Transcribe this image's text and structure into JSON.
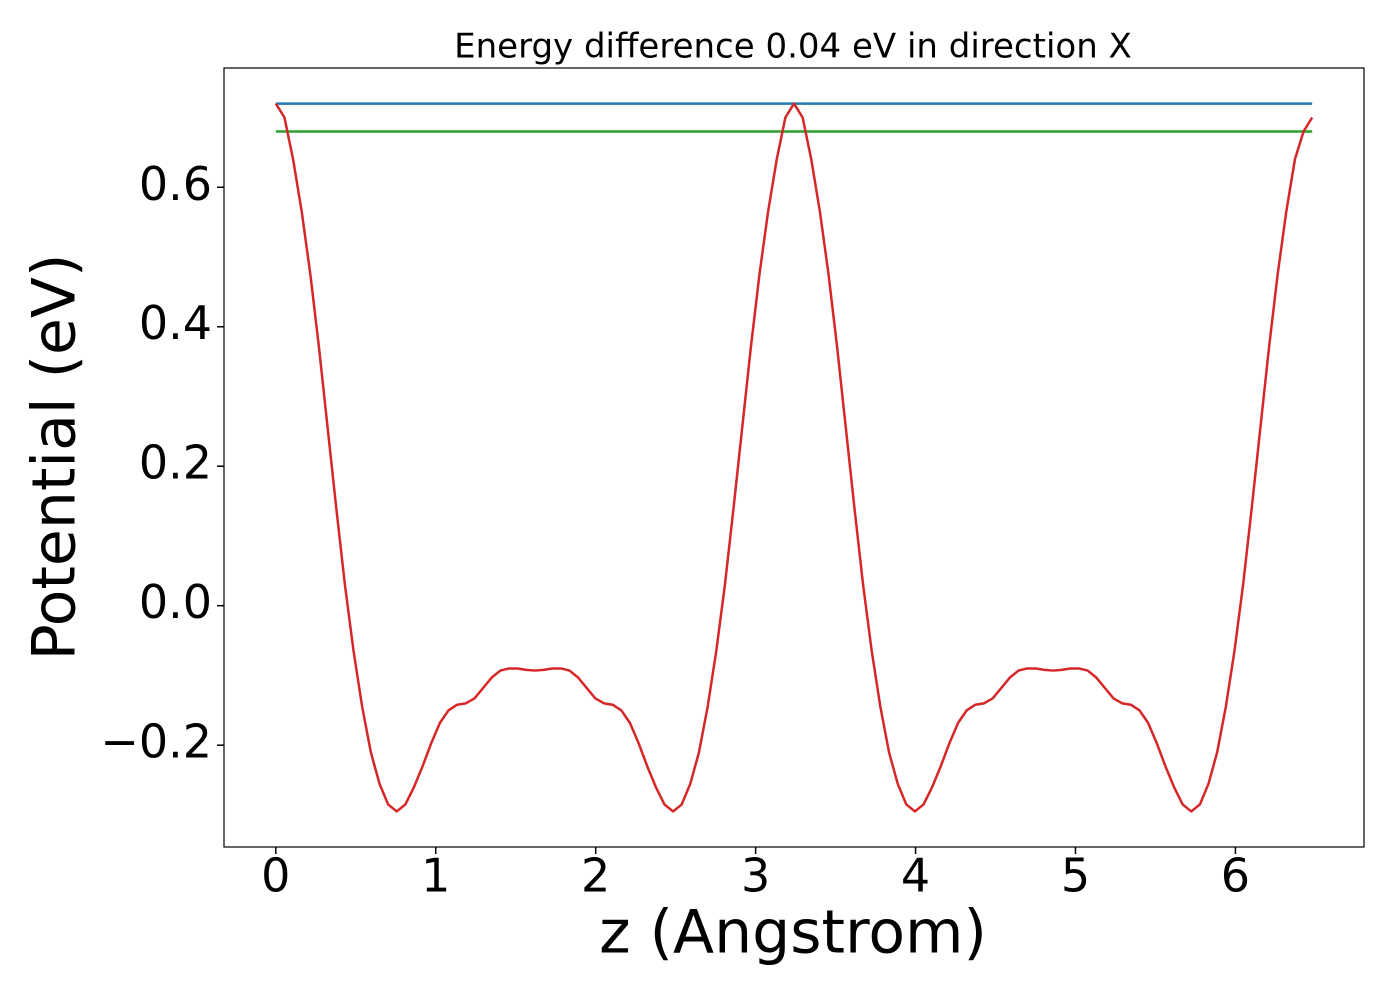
{
  "chart_data": {
    "type": "line",
    "title": "Energy difference 0.04 eV in direction X",
    "xlabel": "z (Angstrom)",
    "ylabel": "Potential (eV)",
    "xlim": [
      -0.324,
      6.804
    ],
    "ylim": [
      -0.346,
      0.771
    ],
    "xticks": [
      0,
      1,
      2,
      3,
      4,
      5,
      6
    ],
    "yticks": [
      {
        "value": -0.2,
        "label": "−0.2"
      },
      {
        "value": 0,
        "label": "0.0"
      },
      0.2,
      0.4,
      0.6
    ],
    "grid": false,
    "series": [
      {
        "color": "#1f77b4",
        "x": [
          0,
          6.48
        ],
        "values": [
          0.72,
          0.72
        ]
      },
      {
        "color": "#2ca02c",
        "x": [
          0,
          6.48
        ],
        "values": [
          0.68,
          0.68
        ]
      },
      {
        "color": "#d62728",
        "x": [
          0,
          0.054,
          0.108,
          0.162,
          0.216,
          0.27,
          0.324,
          0.378,
          0.432,
          0.486,
          0.54,
          0.594,
          0.648,
          0.702,
          0.756,
          0.81,
          0.864,
          0.918,
          0.972,
          1.026,
          1.08,
          1.134,
          1.188,
          1.242,
          1.296,
          1.35,
          1.404,
          1.458,
          1.512,
          1.566,
          1.62,
          1.674,
          1.728,
          1.782,
          1.836,
          1.89,
          1.944,
          1.998,
          2.052,
          2.106,
          2.16,
          2.214,
          2.268,
          2.322,
          2.376,
          2.43,
          2.484,
          2.538,
          2.592,
          2.646,
          2.7,
          2.754,
          2.808,
          2.862,
          2.916,
          2.97,
          3.024,
          3.078,
          3.132,
          3.186,
          3.24,
          3.294,
          3.348,
          3.402,
          3.456,
          3.51,
          3.564,
          3.618,
          3.672,
          3.726,
          3.78,
          3.834,
          3.888,
          3.942,
          3.996,
          4.05,
          4.104,
          4.158,
          4.212,
          4.266,
          4.32,
          4.374,
          4.428,
          4.482,
          4.536,
          4.59,
          4.644,
          4.698,
          4.752,
          4.806,
          4.86,
          4.914,
          4.968,
          5.022,
          5.076,
          5.13,
          5.184,
          5.238,
          5.292,
          5.346,
          5.4,
          5.454,
          5.508,
          5.562,
          5.616,
          5.67,
          5.724,
          5.778,
          5.832,
          5.886,
          5.94,
          5.994,
          6.048,
          6.102,
          6.156,
          6.21,
          6.264,
          6.318,
          6.372,
          6.426,
          6.48
        ],
        "values": [
          0.72,
          0.7,
          0.64,
          0.565,
          0.475,
          0.37,
          0.255,
          0.14,
          0.03,
          -0.065,
          -0.145,
          -0.21,
          -0.255,
          -0.285,
          -0.295,
          -0.285,
          -0.26,
          -0.23,
          -0.197,
          -0.168,
          -0.15,
          -0.142,
          -0.14,
          -0.133,
          -0.118,
          -0.103,
          -0.093,
          -0.09,
          -0.09,
          -0.092,
          -0.093,
          -0.092,
          -0.09,
          -0.09,
          -0.093,
          -0.103,
          -0.118,
          -0.133,
          -0.14,
          -0.142,
          -0.15,
          -0.168,
          -0.197,
          -0.23,
          -0.26,
          -0.285,
          -0.295,
          -0.285,
          -0.255,
          -0.21,
          -0.145,
          -0.065,
          0.03,
          0.14,
          0.255,
          0.37,
          0.475,
          0.565,
          0.64,
          0.7,
          0.72,
          0.7,
          0.64,
          0.565,
          0.475,
          0.37,
          0.255,
          0.14,
          0.03,
          -0.065,
          -0.145,
          -0.21,
          -0.255,
          -0.285,
          -0.295,
          -0.285,
          -0.26,
          -0.23,
          -0.197,
          -0.168,
          -0.15,
          -0.142,
          -0.14,
          -0.133,
          -0.118,
          -0.103,
          -0.093,
          -0.09,
          -0.09,
          -0.092,
          -0.093,
          -0.092,
          -0.09,
          -0.09,
          -0.093,
          -0.103,
          -0.118,
          -0.133,
          -0.14,
          -0.142,
          -0.15,
          -0.168,
          -0.197,
          -0.23,
          -0.26,
          -0.285,
          -0.295,
          -0.285,
          -0.255,
          -0.21,
          -0.145,
          -0.065,
          0.03,
          0.14,
          0.255,
          0.37,
          0.475,
          0.565,
          0.64,
          0.68,
          0.7
        ]
      }
    ]
  }
}
